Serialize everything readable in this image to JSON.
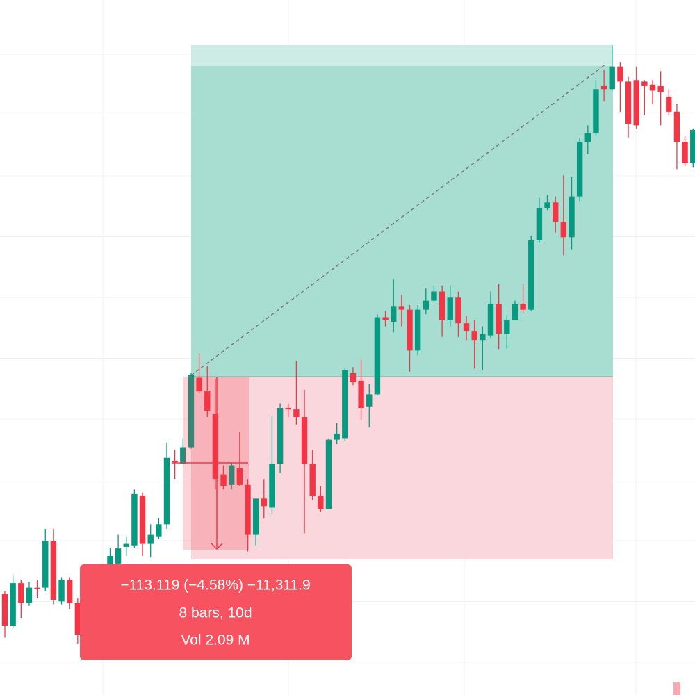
{
  "chart_data": {
    "type": "candlestick",
    "open": [
      2325,
      2304,
      2332,
      2319,
      2329,
      2329,
      2360,
      2320,
      2334,
      2319,
      2313,
      2332,
      2336,
      2342,
      2345,
      2356,
      2357,
      2390,
      2358,
      2363,
      2371,
      2413,
      2411,
      2422,
      2468,
      2459,
      2444,
      2404,
      2397,
      2408,
      2397,
      2364,
      2388,
      2382,
      2411,
      2448,
      2447,
      2442,
      2411,
      2390,
      2381,
      2427,
      2428,
      2471,
      2466,
      2449,
      2457,
      2508,
      2505,
      2515,
      2513,
      2486,
      2513,
      2519,
      2525,
      2506,
      2521,
      2504,
      2499,
      2493,
      2496,
      2517,
      2497,
      2506,
      2517,
      2513,
      2559,
      2580,
      2584,
      2571,
      2561,
      2588,
      2624,
      2630,
      2661,
      2659,
      2674,
      2664,
      2665,
      2664,
      2662,
      2661,
      2654,
      2644,
      2624,
      2610
    ],
    "high": [
      2327,
      2337,
      2334,
      2333,
      2334,
      2368,
      2368,
      2336,
      2336,
      2322,
      2336,
      2338,
      2343,
      2355,
      2364,
      2363,
      2394,
      2392,
      2371,
      2375,
      2425,
      2420,
      2428,
      2471,
      2484,
      2476,
      2467,
      2410,
      2412,
      2432,
      2401,
      2388,
      2401,
      2443,
      2451,
      2451,
      2479,
      2460,
      2420,
      2396,
      2428,
      2438,
      2474,
      2475,
      2480,
      2464,
      2510,
      2512,
      2533,
      2523,
      2516,
      2516,
      2527,
      2529,
      2529,
      2529,
      2525,
      2509,
      2506,
      2502,
      2525,
      2530,
      2509,
      2519,
      2530,
      2562,
      2587,
      2589,
      2588,
      2602,
      2601,
      2627,
      2635,
      2665,
      2672,
      2688,
      2677,
      2667,
      2674,
      2665,
      2665,
      2671,
      2659,
      2649,
      2628,
      2633
    ],
    "low": [
      2296,
      2302,
      2309,
      2317,
      2322,
      2327,
      2318,
      2318,
      2315,
      2292,
      2309,
      2327,
      2334,
      2338,
      2343,
      2350,
      2355,
      2350,
      2349,
      2361,
      2368,
      2401,
      2411,
      2421,
      2458,
      2442,
      2394,
      2394,
      2394,
      2396,
      2353,
      2357,
      2375,
      2378,
      2405,
      2442,
      2437,
      2365,
      2387,
      2379,
      2381,
      2424,
      2426,
      2463,
      2440,
      2435,
      2456,
      2502,
      2498,
      2502,
      2472,
      2483,
      2510,
      2518,
      2495,
      2502,
      2495,
      2493,
      2474,
      2473,
      2494,
      2487,
      2487,
      2509,
      2511,
      2512,
      2557,
      2579,
      2564,
      2549,
      2553,
      2585,
      2616,
      2628,
      2651,
      2658,
      2644,
      2627,
      2633,
      2642,
      2649,
      2635,
      2642,
      2606,
      2608,
      2607
    ],
    "close": [
      2304,
      2332,
      2319,
      2329,
      2328,
      2360,
      2321,
      2334,
      2319,
      2298,
      2332,
      2336,
      2341,
      2350,
      2355,
      2358,
      2391,
      2358,
      2364,
      2371,
      2415,
      2412,
      2422,
      2470,
      2459,
      2446,
      2401,
      2396,
      2410,
      2397,
      2364,
      2388,
      2383,
      2411,
      2448,
      2447,
      2442,
      2411,
      2390,
      2381,
      2427,
      2431,
      2473,
      2465,
      2448,
      2457,
      2508,
      2506,
      2515,
      2513,
      2486,
      2513,
      2519,
      2525,
      2506,
      2521,
      2504,
      2499,
      2493,
      2497,
      2517,
      2497,
      2506,
      2517,
      2513,
      2559,
      2580,
      2584,
      2571,
      2561,
      2588,
      2624,
      2630,
      2659,
      2659,
      2674,
      2664,
      2636,
      2635,
      2661,
      2658,
      2657,
      2644,
      2624,
      2610,
      2632
    ],
    "ylim": [
      2258,
      2718
    ],
    "colors": {
      "up": "#089981",
      "down": "#f23645"
    }
  },
  "tooltip": {
    "lines": [
      "−113.119 (−4.58%) −11,311.9",
      "8 bars, 10d",
      "Vol 2.09 M"
    ]
  }
}
